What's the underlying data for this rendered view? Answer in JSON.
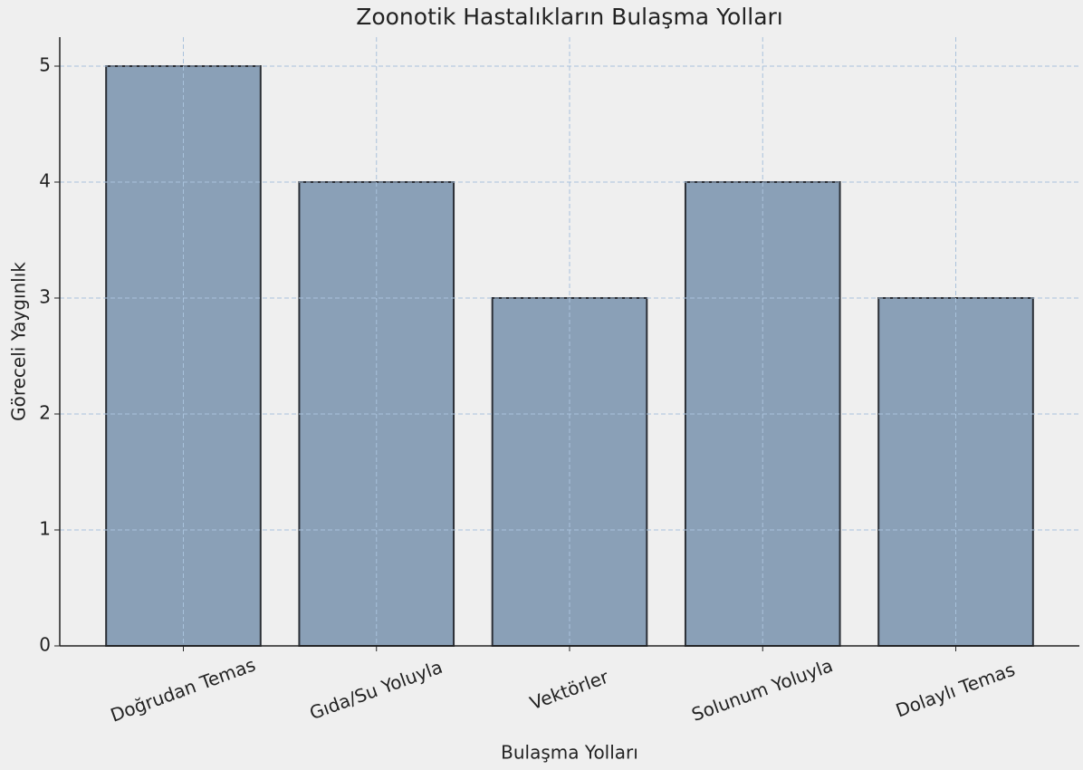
{
  "chart_data": {
    "type": "bar",
    "title": "Zoonotik Hastalıkların Bulaşma Yolları",
    "xlabel": "Bulaşma Yolları",
    "ylabel": "Göreceli Yaygınlık",
    "categories": [
      "Doğrudan Temas",
      "Gıda/Su Yoluyla",
      "Vektörler",
      "Solunum Yoluyla",
      "Dolaylı Temas"
    ],
    "values": [
      5,
      4,
      3,
      4,
      3
    ],
    "color": "#8aa0b7",
    "ylim": [
      0,
      5.25
    ],
    "yticks": [
      0,
      1,
      2,
      3,
      4,
      5
    ],
    "grid": true
  }
}
